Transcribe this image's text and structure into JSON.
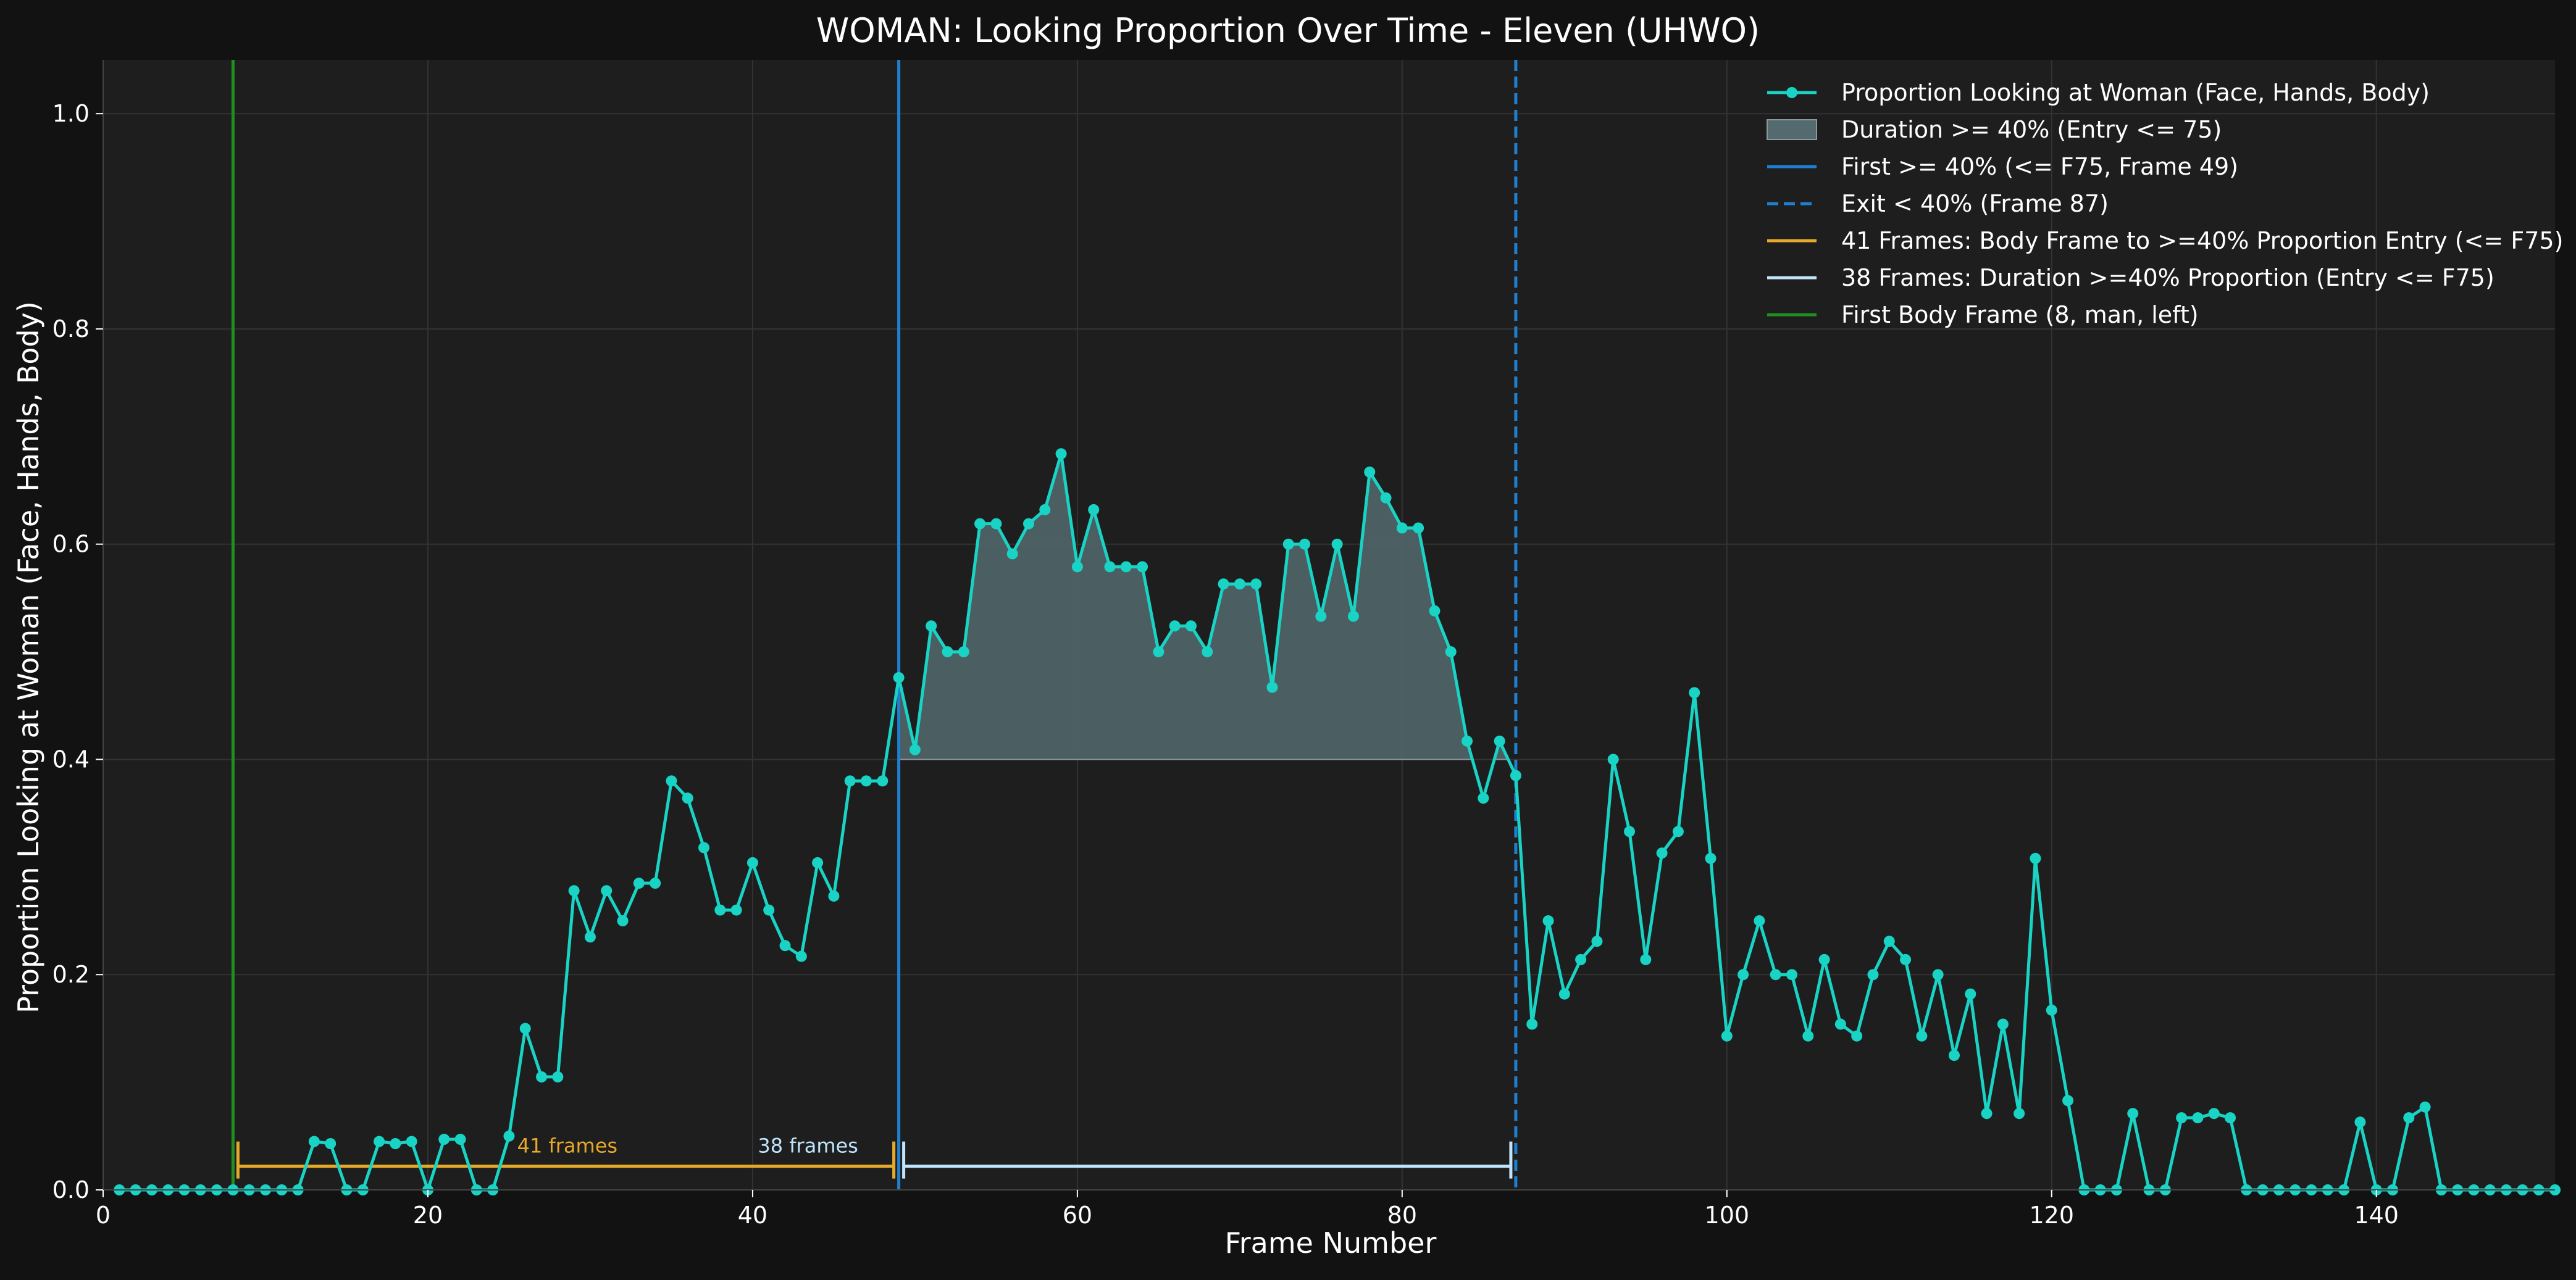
{
  "chart_data": {
    "type": "line",
    "title": "WOMAN: Looking Proportion Over Time - Eleven (UHWO)",
    "xlabel": "Frame Number",
    "ylabel": "Proportion Looking at Woman (Face, Hands, Body)",
    "xlim": [
      0,
      151
    ],
    "ylim": [
      0,
      1.05
    ],
    "xticks": [
      0,
      20,
      40,
      60,
      80,
      100,
      120,
      140
    ],
    "yticks": [
      0.0,
      0.2,
      0.4,
      0.6,
      0.8,
      1.0
    ],
    "ytick_labels": [
      "0.0",
      "0.2",
      "0.4",
      "0.6",
      "0.8",
      "1.0"
    ],
    "grid": true,
    "legend_position": "top-right",
    "threshold": 0.4,
    "colors": {
      "background": "#121212",
      "plot_background": "#1e1e1e",
      "grid": "#333333",
      "text": "#ffffff",
      "series": "#19d3c5",
      "fill": "#546a6e",
      "first_line": "#1e7fd0",
      "exit_line": "#1e7fd0",
      "bracket_41": "#e6a92a",
      "bracket_38": "#bfe4fb",
      "body_frame": "#1f8f1f"
    },
    "series": [
      {
        "name": "Proportion Looking at Woman (Face, Hands, Body)",
        "x": [
          1,
          2,
          3,
          4,
          5,
          6,
          7,
          8,
          9,
          10,
          11,
          12,
          13,
          14,
          15,
          16,
          17,
          18,
          19,
          20,
          21,
          22,
          23,
          24,
          25,
          26,
          27,
          28,
          29,
          30,
          31,
          32,
          33,
          34,
          35,
          36,
          37,
          38,
          39,
          40,
          41,
          42,
          43,
          44,
          45,
          46,
          47,
          48,
          49,
          50,
          51,
          52,
          53,
          54,
          55,
          56,
          57,
          58,
          59,
          60,
          61,
          62,
          63,
          64,
          65,
          66,
          67,
          68,
          69,
          70,
          71,
          72,
          73,
          74,
          75,
          76,
          77,
          78,
          79,
          80,
          81,
          82,
          83,
          84,
          85,
          86,
          87,
          88,
          89,
          90,
          91,
          92,
          93,
          94,
          95,
          96,
          97,
          98,
          99,
          100,
          101,
          102,
          103,
          104,
          105,
          106,
          107,
          108,
          109,
          110,
          111,
          112,
          113,
          114,
          115,
          116,
          117,
          118,
          119,
          120,
          121,
          122,
          123,
          124,
          125,
          126,
          127,
          128,
          129,
          130,
          131,
          132,
          133,
          134,
          135,
          136,
          137,
          138,
          139,
          140,
          141,
          142,
          143,
          144,
          145,
          146,
          147,
          148,
          149,
          150,
          151
        ],
        "y": [
          0,
          0,
          0,
          0,
          0,
          0,
          0,
          0,
          0,
          0,
          0,
          0,
          0.045,
          0.043,
          0,
          0,
          0.045,
          0.043,
          0.045,
          0,
          0.047,
          0.047,
          0,
          0,
          0.05,
          0.15,
          0.105,
          0.105,
          0.278,
          0.235,
          0.278,
          0.25,
          0.285,
          0.285,
          0.38,
          0.364,
          0.318,
          0.26,
          0.26,
          0.304,
          0.26,
          0.227,
          0.217,
          0.304,
          0.273,
          0.38,
          0.38,
          0.38,
          0.476,
          0.409,
          0.524,
          0.5,
          0.5,
          0.619,
          0.619,
          0.591,
          0.619,
          0.632,
          0.684,
          0.579,
          0.632,
          0.579,
          0.579,
          0.579,
          0.5,
          0.524,
          0.524,
          0.5,
          0.563,
          0.563,
          0.563,
          0.467,
          0.6,
          0.6,
          0.533,
          0.6,
          0.533,
          0.667,
          0.643,
          0.615,
          0.615,
          0.538,
          0.5,
          0.417,
          0.364,
          0.417,
          0.385,
          0.154,
          0.25,
          0.182,
          0.214,
          0.231,
          0.4,
          0.333,
          0.214,
          0.313,
          0.333,
          0.462,
          0.308,
          0.143,
          0.2,
          0.25,
          0.2,
          0.2,
          0.143,
          0.214,
          0.154,
          0.143,
          0.2,
          0.231,
          0.214,
          0.143,
          0.2,
          0.125,
          0.182,
          0.071,
          0.154,
          0.071,
          0.308,
          0.167,
          0.083,
          0,
          0,
          0,
          0.071,
          0,
          0,
          0.067,
          0.067,
          0.071,
          0.067,
          0,
          0,
          0,
          0,
          0,
          0,
          0,
          0.063,
          0,
          0,
          0.067,
          0.077,
          0,
          0,
          0,
          0,
          0,
          0,
          0,
          0
        ]
      }
    ],
    "fill_region": {
      "label": "Duration >= 40% (Entry <= 75)",
      "x_start": 49,
      "x_end": 87,
      "baseline": 0.4
    },
    "vlines": [
      {
        "key": "first",
        "x": 49,
        "label": "First >= 40% (<= F75, Frame 49)",
        "style": "solid"
      },
      {
        "key": "exit",
        "x": 87,
        "label": "Exit < 40% (Frame 87)",
        "style": "dashed"
      },
      {
        "key": "body",
        "x": 8,
        "label": "First Body Frame (8, man, left)",
        "style": "solid"
      }
    ],
    "brackets": [
      {
        "key": "b41",
        "x_start": 8,
        "x_end": 49,
        "y": 0.022,
        "label": "41 Frames: Body Frame to >=40% Proportion Entry (<= F75)",
        "annotation": "41 frames"
      },
      {
        "key": "b38",
        "x_start": 49,
        "x_end": 87,
        "y": 0.022,
        "label": "38 Frames: Duration >=40% Proportion (Entry <= F75)",
        "annotation": "38 frames"
      }
    ],
    "legend": [
      {
        "key": "series",
        "label": "Proportion Looking at Woman (Face, Hands, Body)"
      },
      {
        "key": "fill",
        "label": "Duration >= 40% (Entry <= 75)"
      },
      {
        "key": "first",
        "label": "First >= 40% (<= F75, Frame 49)"
      },
      {
        "key": "exit",
        "label": "Exit < 40% (Frame 87)"
      },
      {
        "key": "b41",
        "label": "41 Frames: Body Frame to >=40% Proportion Entry (<= F75)"
      },
      {
        "key": "b38",
        "label": "38 Frames: Duration >=40% Proportion (Entry <= F75)"
      },
      {
        "key": "body",
        "label": "First Body Frame (8, man, left)"
      }
    ]
  }
}
